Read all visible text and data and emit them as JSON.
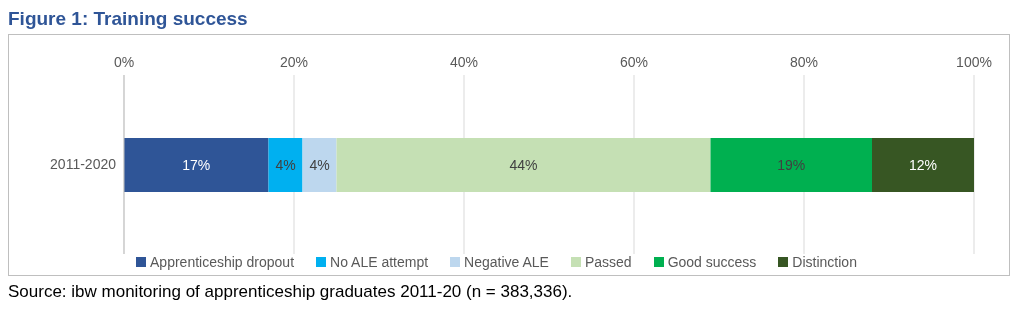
{
  "chart_data": {
    "type": "bar",
    "title": "Figure 1: Training success",
    "orientation": "horizontal",
    "stacked": true,
    "categories": [
      "2011-2020"
    ],
    "series": [
      {
        "name": "Apprenticeship dropout",
        "color": "#2f5597",
        "values": [
          17
        ],
        "value_labels": [
          "17%"
        ]
      },
      {
        "name": "No ALE attempt",
        "color": "#00b0f0",
        "values": [
          4
        ],
        "value_labels": [
          "4%"
        ]
      },
      {
        "name": "Negative ALE",
        "color": "#bdd7ee",
        "values": [
          4
        ],
        "value_labels": [
          "4%"
        ]
      },
      {
        "name": "Passed",
        "color": "#c5e0b4",
        "values": [
          44
        ],
        "value_labels": [
          "44%"
        ]
      },
      {
        "name": "Good success",
        "color": "#00b050",
        "values": [
          19
        ],
        "value_labels": [
          "19%"
        ]
      },
      {
        "name": "Distinction",
        "color": "#375623",
        "values": [
          12
        ],
        "value_labels": [
          "12%"
        ]
      }
    ],
    "xlim": [
      0,
      100
    ],
    "xticks": [
      {
        "value": 0,
        "label": "0%"
      },
      {
        "value": 20,
        "label": "20%"
      },
      {
        "value": 40,
        "label": "40%"
      },
      {
        "value": 60,
        "label": "60%"
      },
      {
        "value": 80,
        "label": "80%"
      },
      {
        "value": 100,
        "label": "100%"
      }
    ],
    "grid": "x",
    "legend": "bottom",
    "annotations": [
      "Source: ibw monitoring of apprenticeship graduates 2011-20 (n = 383,336)."
    ]
  }
}
